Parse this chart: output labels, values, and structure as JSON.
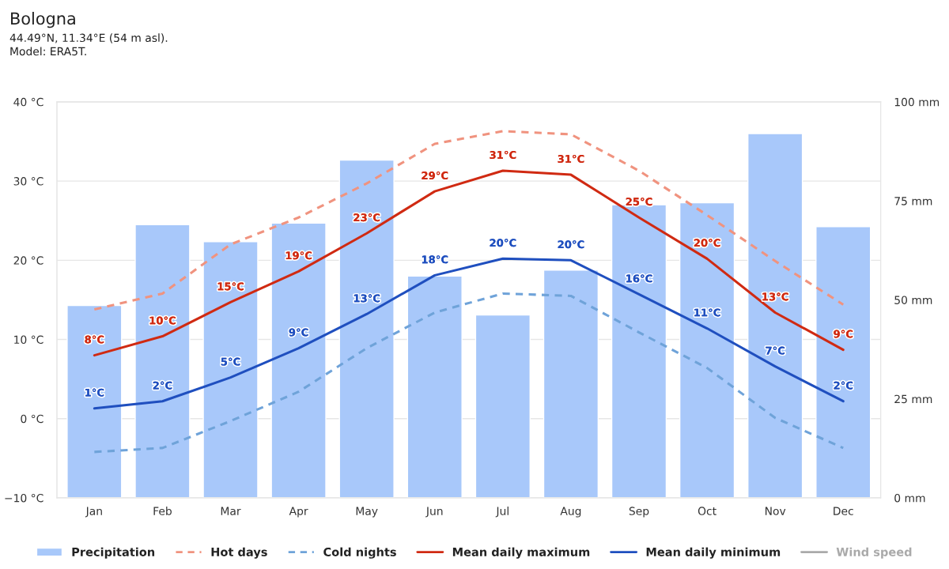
{
  "chart_data": {
    "type": "line",
    "title": "Bologna",
    "subtitle": "44.49°N, 11.34°E (54 m asl).\nModel: ERA5T.",
    "categories": [
      "Jan",
      "Feb",
      "Mar",
      "Apr",
      "May",
      "Jun",
      "Jul",
      "Aug",
      "Sep",
      "Oct",
      "Nov",
      "Dec"
    ],
    "series": [
      {
        "name": "Precipitation",
        "type": "bar",
        "axis": "y2",
        "color": "#a8c8fa",
        "values": [
          48.6,
          69.0,
          64.7,
          69.4,
          85.3,
          56.0,
          46.2,
          57.5,
          74.0,
          74.5,
          92.0,
          68.5
        ]
      },
      {
        "name": "Hot days",
        "line_style": "dashed",
        "color": "#f0937f",
        "values": [
          13.8,
          15.8,
          22.0,
          25.4,
          29.7,
          34.7,
          36.3,
          35.9,
          31.3,
          25.7,
          19.9,
          14.4
        ]
      },
      {
        "name": "Cold nights",
        "line_style": "dashed",
        "color": "#6fa3d9",
        "values": [
          -4.2,
          -3.7,
          -0.3,
          3.4,
          8.9,
          13.4,
          15.8,
          15.5,
          10.9,
          6.4,
          0.1,
          -3.7
        ]
      },
      {
        "name": "Mean daily maximum",
        "line_style": "solid",
        "color": "#d02a12",
        "values": [
          8.0,
          10.4,
          14.7,
          18.6,
          23.4,
          28.7,
          31.3,
          30.8,
          25.4,
          20.2,
          13.4,
          8.7
        ],
        "value_labels": [
          "8°C",
          "10°C",
          "15°C",
          "19°C",
          "23°C",
          "29°C",
          "31°C",
          "31°C",
          "25°C",
          "20°C",
          "13°C",
          "9°C"
        ]
      },
      {
        "name": "Mean daily minimum",
        "line_style": "solid",
        "color": "#1f4fbf",
        "values": [
          1.3,
          2.2,
          5.2,
          8.9,
          13.2,
          18.1,
          20.2,
          20.0,
          15.7,
          11.4,
          6.6,
          2.2
        ],
        "value_labels": [
          "1°C",
          "2°C",
          "5°C",
          "9°C",
          "13°C",
          "18°C",
          "20°C",
          "20°C",
          "16°C",
          "11°C",
          "7°C",
          "2°C"
        ]
      },
      {
        "name": "Wind speed",
        "line_style": "solid",
        "color": "#aaaaaa",
        "values": [
          null,
          null,
          null,
          null,
          null,
          null,
          null,
          null,
          null,
          null,
          null,
          null
        ]
      }
    ],
    "ylim": [
      -10,
      40
    ],
    "yticks": [
      {
        "value": -10,
        "label": "−10 °C"
      },
      {
        "value": 0,
        "label": "0 °C"
      },
      {
        "value": 10,
        "label": "10 °C"
      },
      {
        "value": 20,
        "label": "20 °C"
      },
      {
        "value": 30,
        "label": "30 °C"
      },
      {
        "value": 40,
        "label": "40 °C"
      }
    ],
    "y2lim": [
      0,
      100
    ],
    "y2ticks": [
      {
        "value": 0,
        "label": "0 mm"
      },
      {
        "value": 25,
        "label": "25 mm"
      },
      {
        "value": 50,
        "label": "50 mm"
      },
      {
        "value": 75,
        "label": "75 mm"
      },
      {
        "value": 100,
        "label": "100 mm"
      }
    ],
    "grid": "y",
    "legend": "bottom"
  }
}
